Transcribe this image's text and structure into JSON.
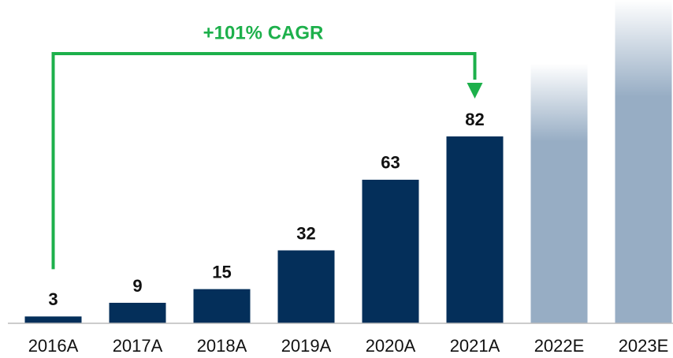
{
  "chart_data": {
    "type": "bar",
    "categories": [
      "2016A",
      "2017A",
      "2018A",
      "2019A",
      "2020A",
      "2021A",
      "2022E",
      "2023E"
    ],
    "values": [
      3,
      9,
      15,
      32,
      63,
      82,
      null,
      null
    ],
    "estimates": [
      null,
      null,
      null,
      null,
      null,
      null,
      114,
      142
    ],
    "color": "#042f5a",
    "estimate_color": "#97adc4",
    "ylim": [
      0,
      150
    ],
    "annotation": "+101% CAGR",
    "annotation_color": "#1db04b"
  }
}
